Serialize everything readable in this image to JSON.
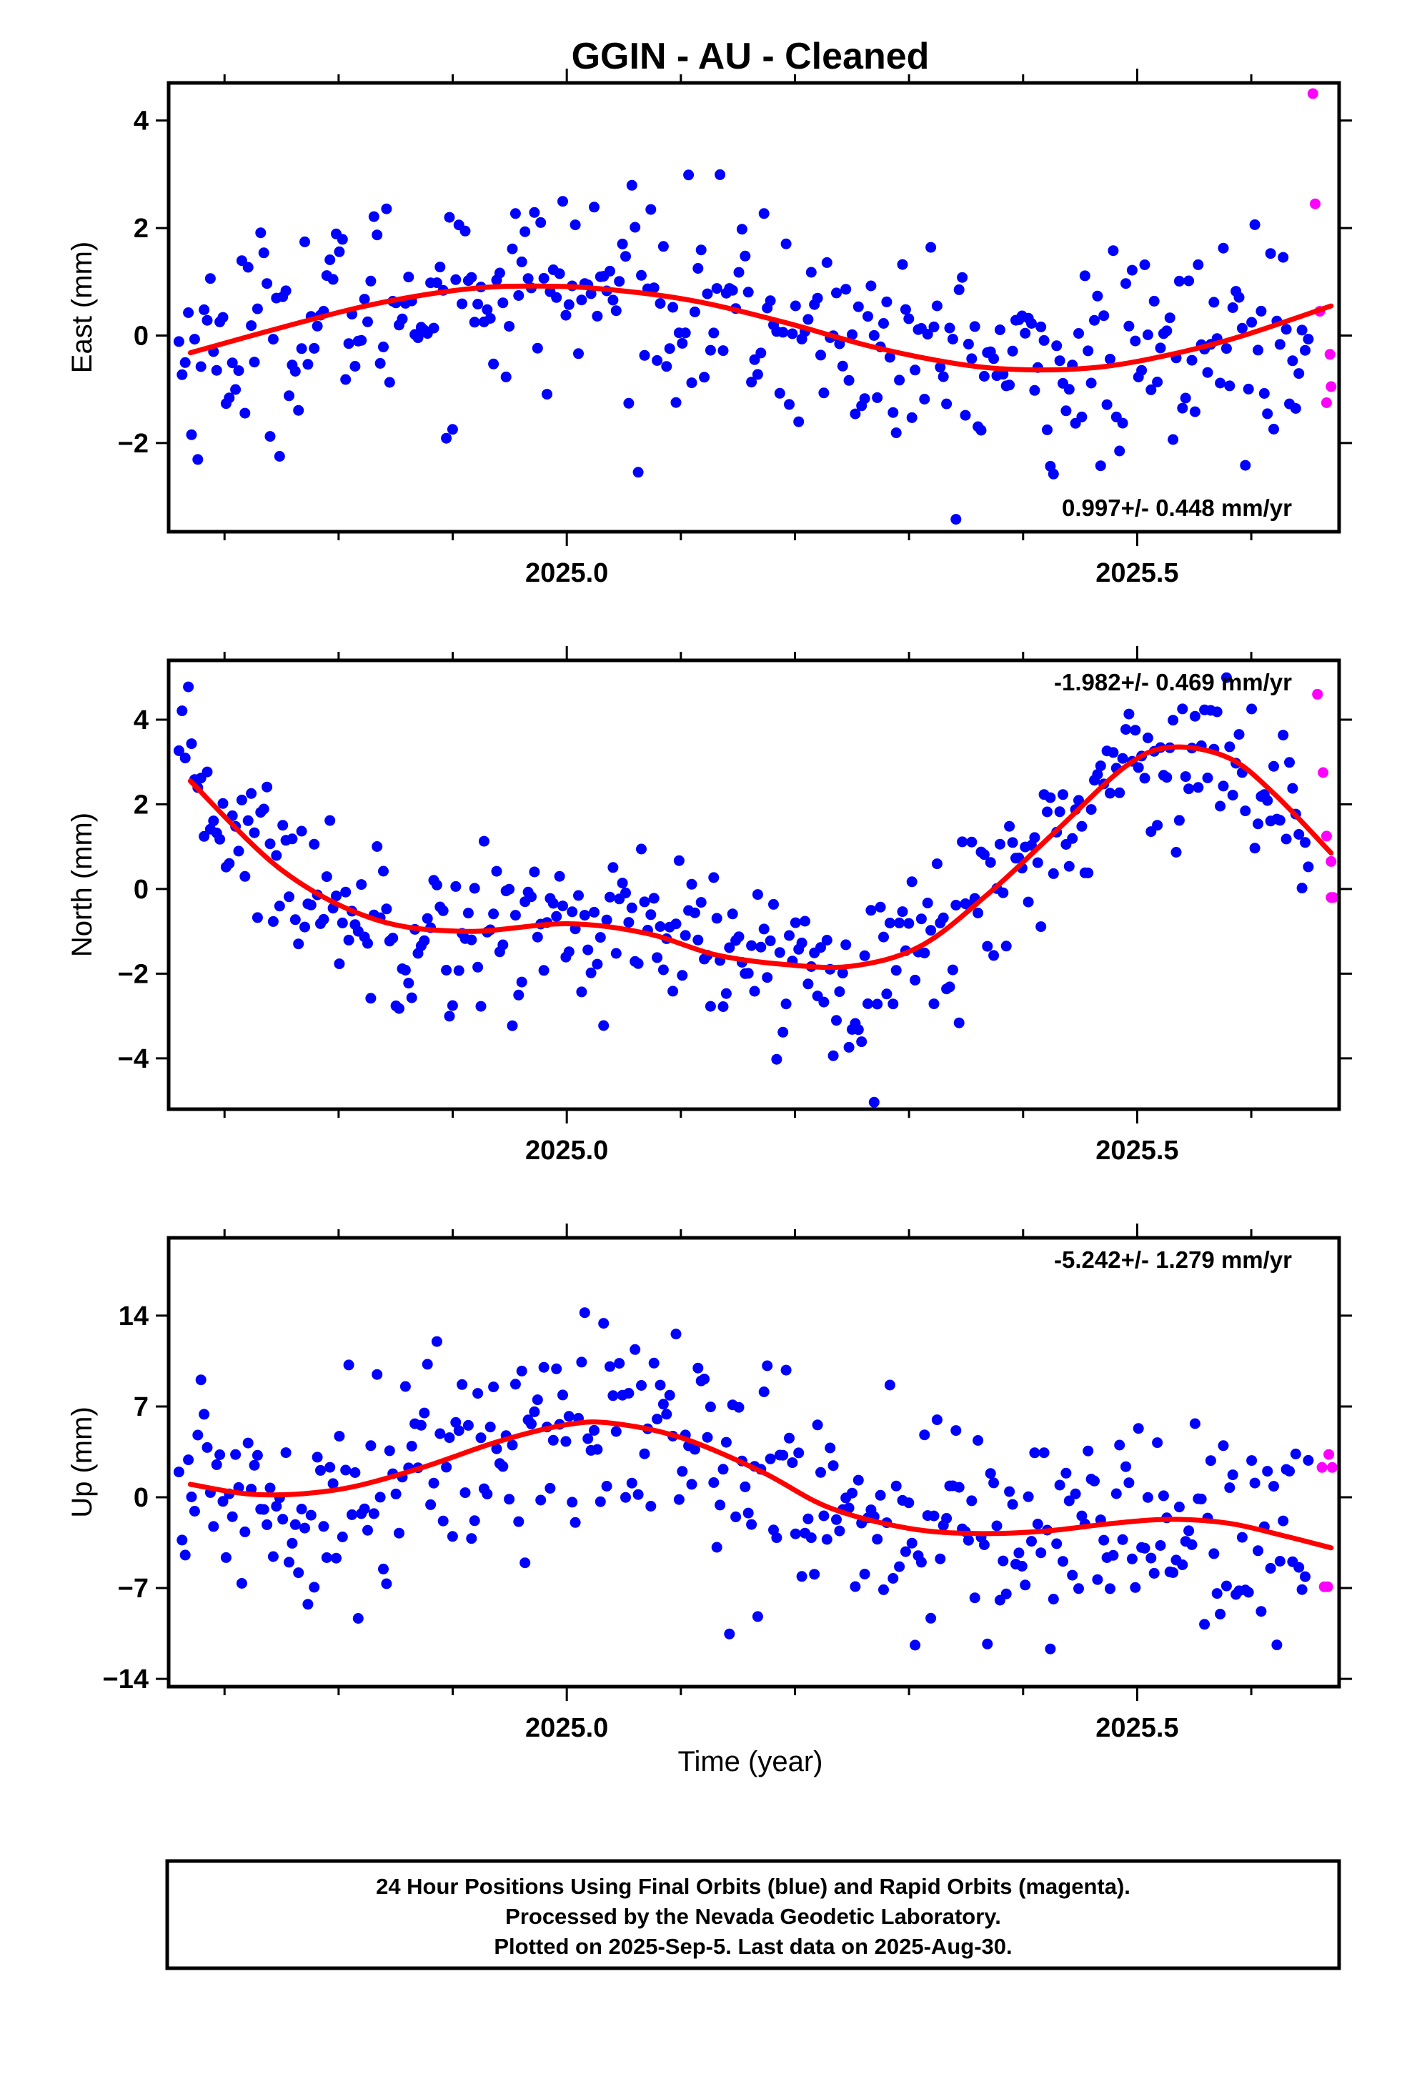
{
  "title": "GGIN  - AU - Cleaned",
  "xlabel": "Time (year)",
  "caption": [
    "24 Hour Positions Using Final Orbits (blue) and Rapid Orbits (magenta).",
    "Processed by the Nevada Geodetic Laboratory.",
    "Plotted on 2025-Sep-5. Last data on 2025-Aug-30."
  ],
  "colors": {
    "final": "#0000ff",
    "rapid": "#ff00ff",
    "model": "#ff0000",
    "frame": "#000000"
  },
  "chart_data": [
    {
      "type": "scatter",
      "ylabel": "East (mm)",
      "xlim": [
        2024.651,
        2025.677
      ],
      "ylim": [
        -3.65,
        4.7
      ],
      "yticks": [
        -2,
        0,
        2,
        4
      ],
      "xticks_major": [
        2025.0,
        2025.5
      ],
      "xticks_minor": [
        2024.7,
        2024.8,
        2024.9,
        2025.1,
        2025.2,
        2025.3,
        2025.4,
        2025.6
      ],
      "rate_label": "0.997+/- 0.448 mm/yr",
      "rate_position": "bottom-right",
      "model_curve": {
        "x": [
          2024.67,
          2024.75,
          2024.83,
          2024.91,
          2024.97,
          2025.03,
          2025.11,
          2025.19,
          2025.27,
          2025.35,
          2025.41,
          2025.47,
          2025.53,
          2025.59,
          2025.67
        ],
        "y": [
          -0.32,
          0.15,
          0.58,
          0.86,
          0.92,
          0.87,
          0.65,
          0.25,
          -0.22,
          -0.55,
          -0.64,
          -0.58,
          -0.35,
          -0.02,
          0.55
        ]
      },
      "rapid_points": {
        "x": [
          2025.654,
          2025.656,
          2025.66,
          2025.669,
          2025.67,
          2025.666
        ],
        "y": [
          4.5,
          2.45,
          0.45,
          -0.35,
          -0.95,
          -1.25
        ]
      },
      "final_points_summary": {
        "x_range": [
          2024.66,
          2025.65
        ],
        "count": 360
      }
    },
    {
      "type": "scatter",
      "ylabel": "North (mm)",
      "xlim": [
        2024.651,
        2025.677
      ],
      "ylim": [
        -5.2,
        5.4
      ],
      "yticks": [
        -4,
        -2,
        0,
        2,
        4
      ],
      "xticks_major": [
        2025.0,
        2025.5
      ],
      "xticks_minor": [
        2024.7,
        2024.8,
        2024.9,
        2025.1,
        2025.2,
        2025.3,
        2025.4,
        2025.6
      ],
      "rate_label": "-1.982+/- 0.469 mm/yr",
      "rate_position": "top-right",
      "model_curve": {
        "x": [
          2024.67,
          2024.75,
          2024.83,
          2024.91,
          2025.0,
          2025.07,
          2025.13,
          2025.19,
          2025.25,
          2025.31,
          2025.37,
          2025.43,
          2025.49,
          2025.53,
          2025.58,
          2025.62,
          2025.67
        ],
        "y": [
          2.55,
          0.45,
          -0.7,
          -1.0,
          -0.82,
          -1.05,
          -1.55,
          -1.78,
          -1.82,
          -1.35,
          -0.1,
          1.4,
          2.9,
          3.35,
          3.1,
          2.25,
          0.85
        ]
      },
      "rapid_points": {
        "x": [
          2025.658,
          2025.663,
          2025.666,
          2025.67,
          2025.672,
          2025.67
        ],
        "y": [
          4.6,
          2.75,
          1.25,
          0.65,
          -0.2,
          -0.2
        ]
      },
      "final_points_summary": {
        "x_range": [
          2024.66,
          2025.65
        ],
        "count": 360
      }
    },
    {
      "type": "scatter",
      "ylabel": "Up (mm)",
      "xlim": [
        2024.651,
        2025.677
      ],
      "ylim": [
        -14.6,
        20.0
      ],
      "yticks": [
        -14,
        -7,
        0,
        7,
        14
      ],
      "xticks_major": [
        2025.0,
        2025.5
      ],
      "xticks_minor": [
        2024.7,
        2024.8,
        2024.9,
        2025.1,
        2025.2,
        2025.3,
        2025.4,
        2025.6
      ],
      "rate_label": "-5.242+/- 1.279 mm/yr",
      "rate_position": "top-right",
      "model_curve": {
        "x": [
          2024.67,
          2024.73,
          2024.8,
          2024.87,
          2024.94,
          2025.0,
          2025.04,
          2025.1,
          2025.17,
          2025.23,
          2025.3,
          2025.36,
          2025.42,
          2025.48,
          2025.53,
          2025.58,
          2025.63,
          2025.67
        ],
        "y": [
          1.0,
          0.2,
          0.6,
          2.2,
          4.3,
          5.6,
          5.7,
          4.6,
          2.0,
          -0.8,
          -2.4,
          -2.8,
          -2.6,
          -2.0,
          -1.7,
          -2.0,
          -3.0,
          -3.9
        ]
      },
      "rapid_points": {
        "x": [
          2025.662,
          2025.668,
          2025.671,
          2025.664,
          2025.667
        ],
        "y": [
          2.3,
          3.3,
          2.3,
          -6.9,
          -6.9
        ]
      },
      "final_points_summary": {
        "x_range": [
          2024.66,
          2025.65
        ],
        "count": 360
      }
    }
  ]
}
